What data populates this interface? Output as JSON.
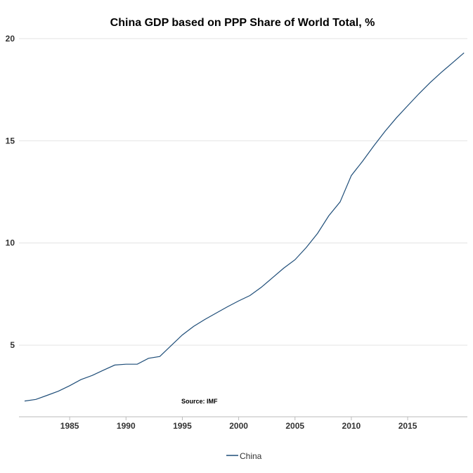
{
  "chart_data": {
    "type": "line",
    "title": "China GDP based on PPP Share of World Total, %",
    "xlabel": "",
    "ylabel": "",
    "xlim": [
      1980.5,
      2020.3
    ],
    "ylim": [
      1.5,
      20.2
    ],
    "x_ticks": [
      1985,
      1990,
      1995,
      2000,
      2005,
      2010,
      2015
    ],
    "y_ticks": [
      5,
      10,
      15,
      20
    ],
    "grid": "horizontal",
    "legend": "bottom",
    "annotation": "Source: IMF",
    "series": [
      {
        "name": "China",
        "color": "#1f4e79",
        "x": [
          1981,
          1982,
          1983,
          1984,
          1985,
          1986,
          1987,
          1988,
          1989,
          1990,
          1991,
          1992,
          1993,
          1994,
          1995,
          1996,
          1997,
          1998,
          1999,
          2000,
          2001,
          2002,
          2003,
          2004,
          2005,
          2006,
          2007,
          2008,
          2009,
          2010,
          2011,
          2012,
          2013,
          2014,
          2015,
          2016,
          2017,
          2018,
          2019,
          2020
        ],
        "values": [
          2.27,
          2.35,
          2.55,
          2.75,
          3.02,
          3.32,
          3.52,
          3.78,
          4.03,
          4.07,
          4.07,
          4.36,
          4.45,
          4.98,
          5.5,
          5.92,
          6.26,
          6.57,
          6.88,
          7.17,
          7.43,
          7.83,
          8.3,
          8.77,
          9.18,
          9.78,
          10.47,
          11.33,
          12.01,
          13.3,
          14.0,
          14.75,
          15.47,
          16.12,
          16.71,
          17.3,
          17.85,
          18.35,
          18.82,
          19.3
        ]
      }
    ]
  }
}
